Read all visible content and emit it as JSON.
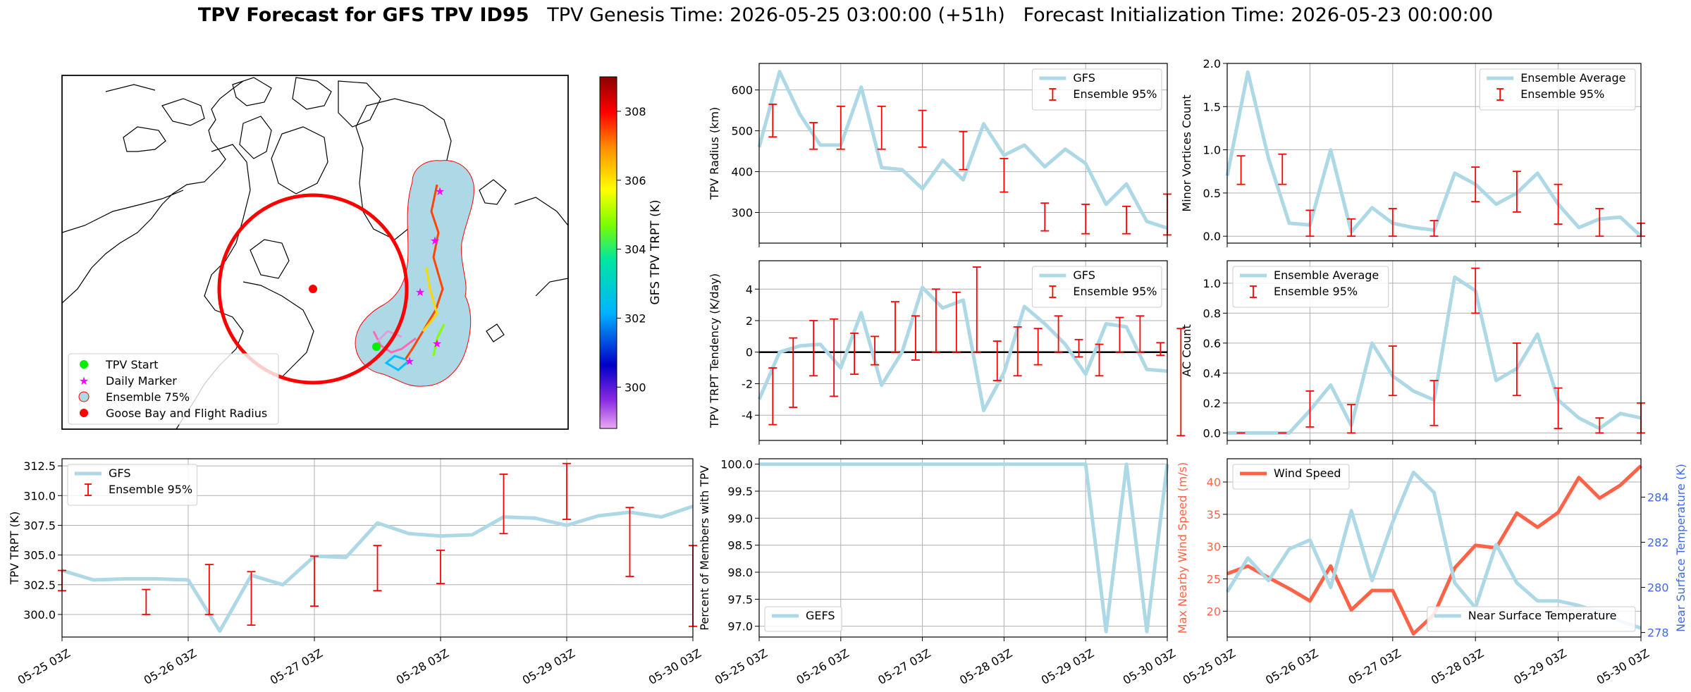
{
  "title": {
    "main": "TPV Forecast for GFS TPV ID95",
    "genesis": "TPV Genesis Time: 2026-05-25 03:00:00 (+51h)",
    "init": "Forecast Initialization Time: 2026-05-23 00:00:00"
  },
  "colors": {
    "ensemble_line": "#add8e6",
    "error_bar": "#ff0000",
    "wind": "#ff6347",
    "temp_axis": "#4169e1",
    "grid": "#b0b0b0"
  },
  "time_ticks": [
    "05-25 03Z",
    "05-26 03Z",
    "05-27 03Z",
    "05-28 03Z",
    "05-29 03Z",
    "05-30 03Z"
  ],
  "map": {
    "colorbar_label": "GFS TPV TRPT (K)",
    "colorbar_ticks": [
      "300",
      "302",
      "304",
      "306",
      "308"
    ],
    "colorbar_range": [
      298.8,
      309.0
    ],
    "legend": [
      "TPV Start",
      "Daily Marker",
      "Ensemble 75%",
      "Goose Bay and Flight Radius"
    ]
  },
  "chart_data": [
    {
      "id": "radius",
      "type": "line",
      "ylabel": "TPV Radius (km)",
      "ylim": [
        225,
        665
      ],
      "yticks": [
        300,
        400,
        500,
        600
      ],
      "legend": [
        "GFS",
        "Ensemble 95%"
      ],
      "legend_loc": "upper right",
      "line": [
        460,
        645,
        540,
        465,
        465,
        607,
        410,
        405,
        358,
        428,
        380,
        517,
        440,
        465,
        412,
        455,
        420,
        320,
        370,
        278,
        262
      ],
      "err": [
        [
          2,
          485,
          565
        ],
        [
          8,
          455,
          520
        ],
        [
          12,
          455,
          560
        ],
        [
          18,
          455,
          560
        ],
        [
          24,
          460,
          550
        ],
        [
          30,
          405,
          498
        ],
        [
          36,
          350,
          432
        ],
        [
          42,
          255,
          323
        ],
        [
          48,
          248,
          320
        ],
        [
          54,
          248,
          315
        ],
        [
          60,
          245,
          345
        ]
      ]
    },
    {
      "id": "minor",
      "type": "line",
      "ylabel": "Minor Vortices Count",
      "ylim": [
        -0.08,
        2.0
      ],
      "yticks": [
        0.0,
        0.5,
        1.0,
        1.5,
        2.0
      ],
      "legend": [
        "Ensemble Average",
        "Ensemble 95%"
      ],
      "legend_loc": "upper right",
      "line": [
        0.7,
        1.9,
        0.9,
        0.15,
        0.13,
        1.0,
        0.05,
        0.33,
        0.15,
        0.1,
        0.07,
        0.73,
        0.6,
        0.37,
        0.5,
        0.73,
        0.37,
        0.1,
        0.2,
        0.22,
        0.0
      ],
      "err": [
        [
          2,
          0.6,
          0.93
        ],
        [
          8,
          0.6,
          0.95
        ],
        [
          12,
          0.0,
          0.3
        ],
        [
          18,
          0.0,
          0.2
        ],
        [
          24,
          0.0,
          0.32
        ],
        [
          30,
          0.0,
          0.18
        ],
        [
          36,
          0.4,
          0.8
        ],
        [
          42,
          0.28,
          0.75
        ],
        [
          48,
          0.14,
          0.6
        ],
        [
          54,
          0.0,
          0.32
        ],
        [
          60,
          0.0,
          0.15
        ]
      ]
    },
    {
      "id": "tendency",
      "type": "line",
      "ylabel": "TPV TRPT Tendency (K/day)",
      "ylim": [
        -5.6,
        5.8
      ],
      "yticks": [
        -4,
        -2,
        0,
        2,
        4
      ],
      "zero_line": true,
      "legend": [
        "GFS",
        "Ensemble 95%"
      ],
      "legend_loc": "upper right",
      "line": [
        -3.0,
        0.0,
        0.4,
        0.5,
        -1.0,
        2.5,
        -2.1,
        0.0,
        4.1,
        2.8,
        3.3,
        -3.7,
        -1.3,
        2.9,
        1.8,
        0.5,
        -1.4,
        1.8,
        1.6,
        -1.1,
        -1.2
      ],
      "err": [
        [
          2,
          -4.6,
          -1.0
        ],
        [
          5,
          -3.5,
          0.9
        ],
        [
          8,
          -1.5,
          2.0
        ],
        [
          11,
          -2.8,
          2.1
        ],
        [
          14,
          -1.4,
          1.2
        ],
        [
          17,
          -0.8,
          1.0
        ],
        [
          20,
          0.0,
          3.2
        ],
        [
          23,
          -0.5,
          2.3
        ],
        [
          26,
          0.0,
          4.0
        ],
        [
          29,
          0.0,
          3.8
        ],
        [
          32,
          0.0,
          5.4
        ],
        [
          35,
          -1.8,
          0.7
        ],
        [
          38,
          -1.5,
          1.6
        ],
        [
          41,
          -0.8,
          1.5
        ],
        [
          44,
          0.0,
          2.3
        ],
        [
          47,
          -0.3,
          0.8
        ],
        [
          50,
          -1.5,
          0.5
        ],
        [
          53,
          0.0,
          2.2
        ],
        [
          56,
          0.0,
          2.3
        ],
        [
          59,
          -0.2,
          0.6
        ],
        [
          62,
          -5.3,
          1.5
        ]
      ]
    },
    {
      "id": "ac",
      "type": "line",
      "ylabel": "AC Count",
      "ylim": [
        -0.05,
        1.15
      ],
      "yticks": [
        0.0,
        0.2,
        0.4,
        0.6,
        0.8,
        1.0
      ],
      "legend": [
        "Ensemble Average",
        "Ensemble 95%"
      ],
      "legend_loc": "upper left",
      "line": [
        0.0,
        0.0,
        0.0,
        0.0,
        0.15,
        0.32,
        0.05,
        0.6,
        0.38,
        0.28,
        0.22,
        1.04,
        0.95,
        0.35,
        0.43,
        0.66,
        0.22,
        0.1,
        0.03,
        0.13,
        0.1
      ],
      "err": [
        [
          2,
          0.0,
          0.0
        ],
        [
          8,
          0.0,
          0.0
        ],
        [
          12,
          0.04,
          0.28
        ],
        [
          18,
          0.0,
          0.19
        ],
        [
          24,
          0.25,
          0.58
        ],
        [
          30,
          0.05,
          0.35
        ],
        [
          36,
          0.8,
          1.1
        ],
        [
          42,
          0.25,
          0.6
        ],
        [
          48,
          0.03,
          0.3
        ],
        [
          54,
          0.0,
          0.1
        ],
        [
          60,
          0.0,
          0.2
        ]
      ]
    },
    {
      "id": "trpt",
      "type": "line",
      "ylabel": "TPV TRPT (K)",
      "ylim": [
        298.1,
        313.1
      ],
      "yticks": [
        300.0,
        302.5,
        305.0,
        307.5,
        310.0,
        312.5
      ],
      "legend": [
        "GFS",
        "Ensemble 95%"
      ],
      "legend_loc": "upper left",
      "line": [
        303.7,
        302.9,
        303.0,
        303.0,
        302.9,
        298.6,
        303.3,
        302.5,
        304.9,
        304.8,
        307.7,
        306.8,
        306.6,
        306.7,
        308.2,
        308.1,
        307.5,
        308.3,
        308.6,
        308.2,
        309.1
      ],
      "err": [
        [
          0,
          302.0,
          303.7
        ],
        [
          8,
          300.0,
          302.1
        ],
        [
          14,
          300.0,
          304.2
        ],
        [
          18,
          299.1,
          303.6
        ],
        [
          24,
          300.7,
          304.9
        ],
        [
          30,
          302.0,
          305.8
        ],
        [
          36,
          302.6,
          305.4
        ],
        [
          42,
          306.8,
          311.8
        ],
        [
          48,
          308.0,
          312.7
        ],
        [
          54,
          303.2,
          309.0
        ],
        [
          60,
          299.0,
          305.8
        ]
      ]
    },
    {
      "id": "members",
      "type": "line",
      "ylabel": "Percent of Members with TPV",
      "ylim": [
        96.8,
        100.1
      ],
      "yticks": [
        97.0,
        97.5,
        98.0,
        98.5,
        99.0,
        99.5,
        100.0
      ],
      "legend": [
        "GEFS"
      ],
      "legend_loc": "lower left",
      "line": [
        100,
        100,
        100,
        100,
        100,
        100,
        100,
        100,
        100,
        100,
        100,
        100,
        100,
        100,
        100,
        100,
        100,
        96.9,
        100,
        96.9,
        100
      ]
    },
    {
      "id": "wind",
      "type": "line",
      "ylabel": "Max Nearby Wind Speed (m/s)",
      "ylim": [
        16.0,
        43.6
      ],
      "yticks": [
        20,
        25,
        30,
        35,
        40
      ],
      "legend": [
        "Wind Speed"
      ],
      "legend_loc": "upper left",
      "line": [
        25.8,
        27.0,
        25.2,
        23.5,
        21.6,
        27.0,
        20.2,
        23.2,
        23.2,
        16.5,
        19.5,
        26.7,
        30.2,
        29.8,
        35.2,
        33.0,
        35.3,
        40.7,
        37.5,
        39.5,
        42.5
      ],
      "y2label": "Near Surface Temperature (K)",
      "y2lim": [
        277.8,
        285.7
      ],
      "y2ticks": [
        278,
        280,
        282,
        284
      ],
      "legend2": [
        "Near Surface Temperature"
      ],
      "legend2_loc": "lower right",
      "line2": [
        279.8,
        281.3,
        280.3,
        281.7,
        282.1,
        280.0,
        283.4,
        280.3,
        282.9,
        285.1,
        284.2,
        280.2,
        279.1,
        281.9,
        280.2,
        279.4,
        279.4,
        279.2,
        278.9,
        278.5,
        278.2
      ]
    }
  ]
}
